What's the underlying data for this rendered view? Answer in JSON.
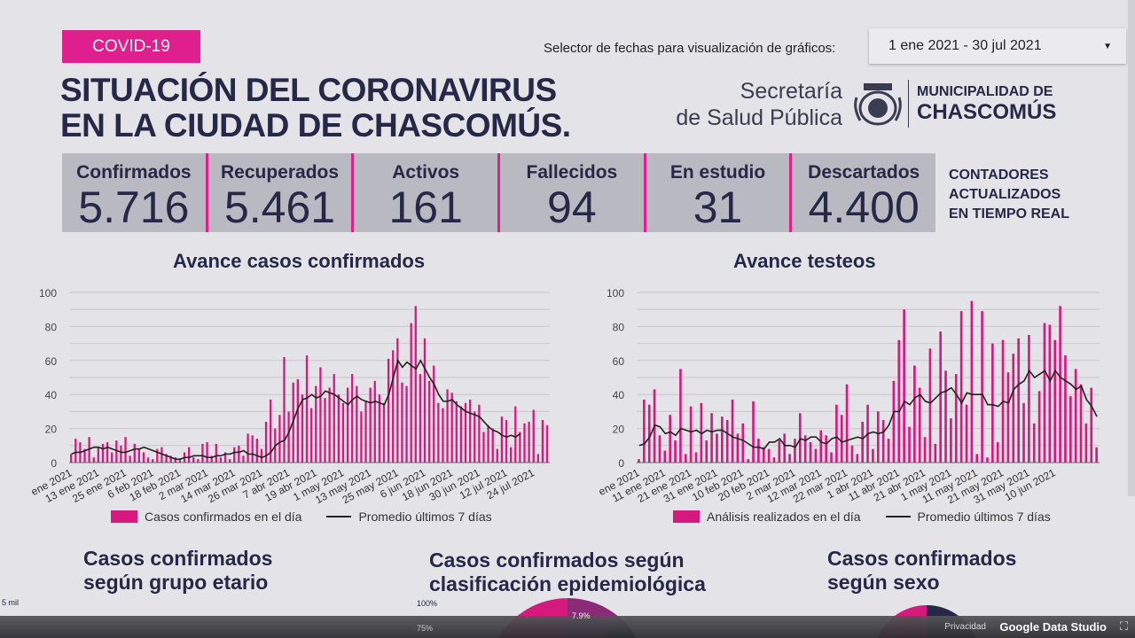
{
  "header": {
    "badge": "COVID-19",
    "title_line1": "SITUACIÓN DEL CORONAVIRUS",
    "title_line2": "EN LA CIUDAD DE CHASCOMÚS.",
    "selector_label": "Selector de fechas para visualización de gráficos:",
    "selector_value": "1 ene 2021 - 30 jul 2021",
    "secretaria_line1": "Secretaría",
    "secretaria_line2": "de Salud Pública",
    "muni_line1": "MUNICIPALIDAD DE",
    "muni_line2": "CHASCOMÚS"
  },
  "counters": [
    {
      "label": "Confirmados",
      "value": "5.716"
    },
    {
      "label": "Recuperados",
      "value": "5.461"
    },
    {
      "label": "Activos",
      "value": "161"
    },
    {
      "label": "Fallecidos",
      "value": "94"
    },
    {
      "label": "En estudio",
      "value": "31"
    },
    {
      "label": "Descartados",
      "value": "4.400"
    }
  ],
  "counters_note": [
    "CONTADORES",
    "ACTUALIZADOS",
    "EN TIEMPO REAL"
  ],
  "colors": {
    "accent": "#e01f8f",
    "bar": "#d6197f",
    "line": "#222222",
    "text": "#252847"
  },
  "chart_data": [
    {
      "type": "bar",
      "title": "Avance casos confirmados",
      "ylim": [
        0,
        100
      ],
      "yticks": [
        0,
        20,
        40,
        60,
        80,
        100
      ],
      "grid": true,
      "legend": "bottom",
      "xticks": [
        "ene 2021",
        "13 ene 2021",
        "25 ene 2021",
        "6 feb 2021",
        "18 feb 2021",
        "2 mar 2021",
        "14 mar 2021",
        "26 mar 2021",
        "7 abr 2021",
        "19 abr 2021",
        "1 may 2021",
        "13 may 2021",
        "25 may 2021",
        "6 jun 2021",
        "18 jun 2021",
        "30 jun 2021",
        "12 jul 2021",
        "24 jul 2021"
      ],
      "series": [
        {
          "name": "Casos confirmados en el día",
          "type": "bar",
          "values": [
            5,
            14,
            12,
            8,
            15,
            3,
            9,
            11,
            12,
            6,
            13,
            10,
            15,
            4,
            11,
            8,
            6,
            3,
            2,
            8,
            9,
            5,
            4,
            3,
            2,
            6,
            9,
            3,
            2,
            11,
            12,
            4,
            11,
            3,
            6,
            2,
            9,
            10,
            4,
            17,
            16,
            14,
            8,
            24,
            37,
            20,
            28,
            62,
            30,
            47,
            49,
            40,
            63,
            32,
            45,
            56,
            38,
            44,
            52,
            40,
            35,
            44,
            52,
            45,
            30,
            36,
            44,
            48,
            40,
            35,
            61,
            66,
            73,
            47,
            45,
            82,
            92,
            52,
            73,
            48,
            57,
            35,
            32,
            43,
            41,
            36,
            33,
            35,
            37,
            30,
            34,
            18,
            22,
            20,
            8,
            27,
            25,
            9,
            33,
            18,
            23,
            24,
            31,
            5,
            25,
            22
          ]
        },
        {
          "name": "Promedio últimos 7 días",
          "type": "line",
          "values": [
            5,
            6,
            6,
            7,
            8,
            9,
            9,
            8,
            9,
            8,
            7,
            6,
            6,
            7,
            8,
            8,
            9,
            8,
            7,
            6,
            5,
            4,
            3,
            2,
            2,
            3,
            3,
            4,
            4,
            4,
            3,
            3,
            4,
            4,
            5,
            5,
            6,
            6,
            7,
            5,
            5,
            4,
            3,
            4,
            6,
            10,
            12,
            13,
            18,
            25,
            32,
            37,
            38,
            40,
            38,
            39,
            42,
            41,
            40,
            38,
            36,
            34,
            37,
            39,
            37,
            36,
            35,
            36,
            35,
            34,
            40,
            50,
            60,
            56,
            59,
            57,
            55,
            60,
            55,
            50,
            46,
            40,
            36,
            36,
            37,
            34,
            32,
            30,
            29,
            28,
            27,
            24,
            21,
            19,
            18,
            16,
            15,
            16,
            15,
            17,
            null,
            null,
            null,
            null,
            null,
            null
          ]
        }
      ]
    },
    {
      "type": "bar",
      "title": "Avance testeos",
      "ylim": [
        0,
        100
      ],
      "yticks": [
        0,
        20,
        40,
        60,
        80,
        100
      ],
      "grid": true,
      "legend": "bottom",
      "xticks": [
        "ene 2021",
        "11 ene 2021",
        "21 ene 2021",
        "31 ene 2021",
        "10 feb 2021",
        "20 feb 2021",
        "2 mar 2021",
        "12 mar 2021",
        "22 mar 2021",
        "1 abr 2021",
        "11 abr 2021",
        "21 abr 2021",
        "1 may 2021",
        "11 may 2021",
        "21 may 2021",
        "31 may 2021",
        "10 jun 2021"
      ],
      "series": [
        {
          "name": "Análisis realizados en el día",
          "type": "bar",
          "values": [
            2,
            37,
            34,
            43,
            16,
            7,
            28,
            13,
            55,
            5,
            33,
            6,
            35,
            13,
            29,
            17,
            27,
            25,
            37,
            17,
            23,
            2,
            36,
            14,
            9,
            8,
            3,
            13,
            17,
            5,
            14,
            29,
            16,
            12,
            8,
            19,
            16,
            6,
            34,
            28,
            46,
            10,
            5,
            24,
            34,
            8,
            30,
            25,
            14,
            48,
            72,
            90,
            21,
            57,
            44,
            15,
            67,
            11,
            77,
            54,
            26,
            52,
            89,
            34,
            95,
            5,
            89,
            3,
            70,
            12,
            72,
            53,
            64,
            73,
            35,
            75,
            23,
            42,
            82,
            81,
            72,
            92,
            63,
            39,
            55,
            46,
            23,
            44,
            9
          ]
        },
        {
          "name": "Promedio últimos 7 días",
          "type": "line",
          "values": [
            10,
            11,
            15,
            22,
            21,
            17,
            18,
            16,
            20,
            19,
            18,
            19,
            17,
            19,
            18,
            19,
            19,
            17,
            15,
            14,
            13,
            11,
            9,
            9,
            8,
            12,
            12,
            14,
            10,
            10,
            9,
            14,
            13,
            15,
            15,
            12,
            11,
            14,
            15,
            12,
            13,
            14,
            15,
            14,
            17,
            18,
            17,
            18,
            22,
            30,
            30,
            36,
            34,
            38,
            40,
            36,
            35,
            38,
            41,
            42,
            44,
            40,
            35,
            41,
            40,
            40,
            40,
            34,
            34,
            33,
            36,
            35,
            43,
            46,
            48,
            54,
            50,
            52,
            54,
            48,
            54,
            50,
            48,
            46,
            43,
            45,
            37,
            33,
            27
          ]
        }
      ]
    }
  ],
  "bottom": {
    "age_title": [
      "Casos confirmados",
      "según grupo etario"
    ],
    "age_axis": "5 mil",
    "epi_title": [
      "Casos confirmados según",
      "clasificación epidemiológica"
    ],
    "epi_axis": "100%",
    "epi_axis2": "75%",
    "epi_slice": "7.9%",
    "sex_title": [
      "Casos confirmados",
      "según sexo"
    ]
  },
  "footer": {
    "privacy": "Privacidad",
    "brand": "Google Data Studio"
  }
}
